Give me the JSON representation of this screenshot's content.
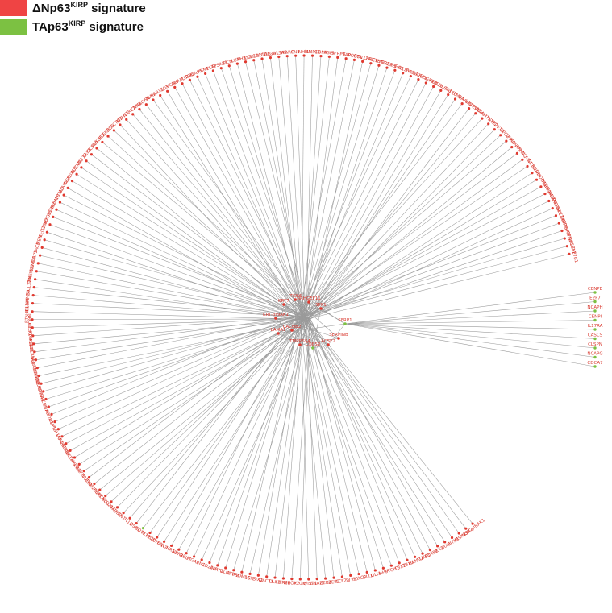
{
  "legend": [
    {
      "prefix": "ΔNp63",
      "sup": "KIRP",
      "suffix": " signature",
      "color": "#ef4444"
    },
    {
      "prefix": "TAp63",
      "sup": "KIRP",
      "suffix": " signature",
      "color": "#7cc142"
    }
  ],
  "colors": {
    "node_red": "#e0392f",
    "node_green": "#7cc142",
    "edge": "#9a9a9a",
    "label": "#d93a30"
  },
  "network": {
    "hubs": [
      {
        "label": "ITGB6"
      },
      {
        "label": "KRT7"
      },
      {
        "label": "ARHGEF11"
      },
      {
        "label": "KRT-pINAK1"
      },
      {
        "label": "CACNB2"
      },
      {
        "label": "SPP1"
      },
      {
        "label": "TMPRSS4"
      },
      {
        "label": "COBS2"
      },
      {
        "label": "ACSF2"
      },
      {
        "label": "SERPINB"
      },
      {
        "label": "SFRP1"
      },
      {
        "label": "LAMA1"
      }
    ],
    "right_cluster": [
      {
        "label": "CENPE",
        "group": "green"
      },
      {
        "label": "E2F7",
        "group": "green"
      },
      {
        "label": "NCAPH",
        "group": "green"
      },
      {
        "label": "CENPI",
        "group": "green"
      },
      {
        "label": "IL17RA",
        "group": "green"
      },
      {
        "label": "CASC5",
        "group": "green"
      },
      {
        "label": "CLSPN",
        "group": "green"
      },
      {
        "label": "NCAPG",
        "group": "green"
      },
      {
        "label": "CDCA7",
        "group": "green"
      }
    ],
    "ring": [
      "CYP7B1",
      "ITGBL1",
      "CENB1",
      "CRISPLD1",
      "TBX18",
      "SLC7A7",
      "TNFRSF12",
      "ADAM23",
      "ADAM19",
      "TMEFF1",
      "DHDDS1",
      "SDHB1",
      "GRPR",
      "NOVA1",
      "PRKCQ",
      "KCNIP1",
      "TFPI2",
      "GPC2",
      "PDE1A",
      "FSTL2",
      "ADAMTS12",
      "PCDH7",
      "WNT5A",
      "DAAM2",
      "ITM2A",
      "PALLD",
      "COL6A3",
      "FZD10",
      "PDGFRB",
      "SULF1",
      "TWIST2",
      "COL16A1",
      "EPHA3",
      "GREM1",
      "CTHRC1",
      "LRRC15",
      "COL11A1",
      "POSTN",
      "FAP",
      "SFRP4",
      "ASPN",
      "COMP",
      "MMP11",
      "INHBA",
      "FN1",
      "SPARC",
      "COL5A2",
      "COL3A1",
      "COL1A1",
      "COL1A2",
      "THBS2",
      "LUM",
      "DCN",
      "TPSAB1",
      "PLAT",
      "FBN1",
      "MFAP5",
      "CTSK",
      "ADAM12",
      "VCAN",
      "LOX",
      "PRRX1",
      "SNAI2",
      "TAGLN",
      "CNN1",
      "NTRK2",
      "MYH11",
      "ACTG2",
      "DES",
      "PCSK5",
      "PLXDC2",
      "PCSK6",
      "LEF1",
      "PEX13",
      "PDZRN3",
      "PDZK1",
      "DGKI",
      "NCAM2",
      "MYO10",
      "MYH10",
      "ADRB2",
      "MYO5C",
      "LTBP2",
      "MEIS2",
      "MEI1",
      "TAC3",
      "LRP3",
      "SAMD5",
      "TMEM178",
      "ELN",
      "CXCL12",
      "INHBA",
      "IL18AP",
      "RTN4RL1",
      "NRCC1",
      "APLP1",
      "HOXA11",
      "PSAT1",
      "GUCY1A2",
      "ANGPT2",
      "LAMA1",
      "SKPN2",
      "ANKRD1",
      "MDGA1",
      "GREM1",
      "LHX9",
      "PHOD1",
      "CLIP3",
      "TSKU",
      "GAP43",
      "ADGRA2",
      "CAMK2A",
      "OLFML2B",
      "NAV2",
      "LMOD2",
      "SYCE2",
      "FAM20C",
      "EBF1",
      "KCNQ4",
      "SLC24A3",
      "OTUB2",
      "FN1",
      "TLL2",
      "OSR1",
      "SOX11",
      "KLHL29",
      "PCDH11",
      "ENC1",
      "DHRS3",
      "NPR3",
      "RELN",
      "ITGA8",
      "EN1",
      "CD248",
      "FLRT2",
      "GLI2",
      "NRP2",
      "PRDM16",
      "LGI2",
      "SIX2",
      "DACT1",
      "DLK1",
      "HTR2B",
      "MEOX2",
      "PTGIS",
      "TWIST1",
      "SNAI1",
      "ZEB1",
      "ZEB2",
      "TCF21",
      "WT1",
      "FOXC2",
      "GLI1",
      "GLI3",
      "HHIP",
      "PTCH1",
      "TBX2",
      "TBX3",
      "HAND2",
      "FOXF1",
      "FOXF2",
      "IRX3",
      "IRX5",
      "PITX1",
      "MSX1",
      "MSX2",
      "KRT-pINAK1"
    ],
    "ring_green": [
      "SFRP1",
      "SOX11"
    ]
  }
}
